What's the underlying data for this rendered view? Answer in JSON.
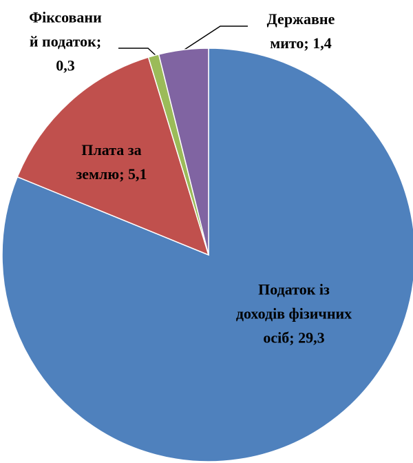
{
  "chart_data": {
    "type": "pie",
    "values": [
      29.3,
      5.1,
      0.3,
      1.4
    ],
    "value_labels": [
      "Податок із доходів фізичних осіб; 29,3",
      "Плата за землю; 5,1",
      "Фіксований податок; 0,3",
      "Державне мито; 1,4"
    ],
    "colors": [
      "#4f81bd",
      "#c0504d",
      "#9bbb59",
      "#8064a2"
    ],
    "start_angle": 0,
    "direction": "clockwise"
  }
}
